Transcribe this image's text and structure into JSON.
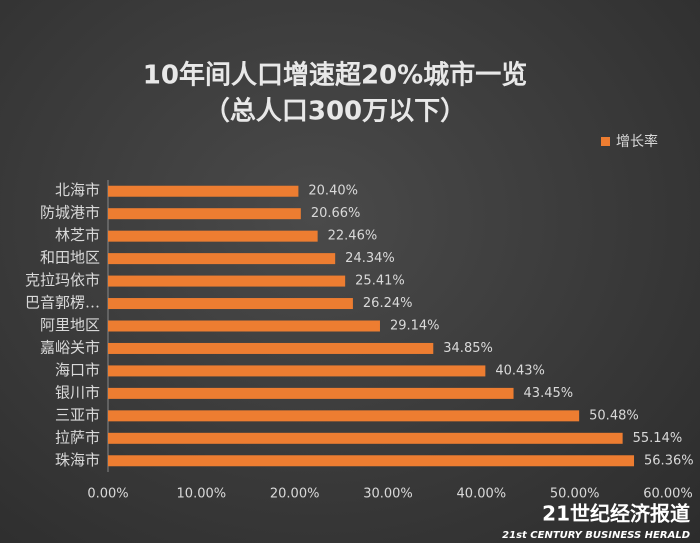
{
  "chart_data": {
    "type": "hbar",
    "title": "10年间人口增速超20%城市一览",
    "subtitle": "（总人口300万以下）",
    "categories": [
      "北海市",
      "防城港市",
      "林芝市",
      "和田地区",
      "克拉玛依市",
      "巴音郭楞…",
      "阿里地区",
      "嘉峪关市",
      "海口市",
      "银川市",
      "三亚市",
      "拉萨市",
      "珠海市"
    ],
    "series": [
      {
        "name": "增长率",
        "color": "#ed7d31",
        "values": [
          20.4,
          20.66,
          22.46,
          24.34,
          25.41,
          26.24,
          29.14,
          34.85,
          40.43,
          43.45,
          50.48,
          55.14,
          56.36
        ],
        "value_labels": [
          "20.40%",
          "20.66%",
          "22.46%",
          "24.34%",
          "25.41%",
          "26.24%",
          "29.14%",
          "34.85%",
          "40.43%",
          "43.45%",
          "50.48%",
          "55.14%",
          "56.36%"
        ]
      }
    ],
    "xlim": [
      0,
      60
    ],
    "xticks": [
      {
        "value": 0,
        "label": "0.00%"
      },
      {
        "value": 10,
        "label": "10.00%"
      },
      {
        "value": 20,
        "label": "20.00%"
      },
      {
        "value": 30,
        "label": "30.00%"
      },
      {
        "value": 40,
        "label": "40.00%"
      },
      {
        "value": 50,
        "label": "50.00%"
      },
      {
        "value": 60,
        "label": "60.00%"
      }
    ],
    "legend": "top-right",
    "watermark": {
      "title": "21世纪经济报道",
      "subtitle": "21st CENTURY BUSINESS HERALD"
    }
  }
}
